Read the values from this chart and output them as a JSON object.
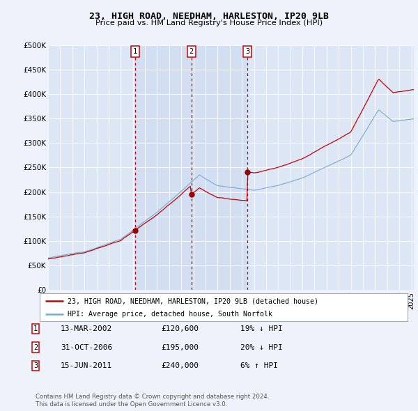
{
  "title": "23, HIGH ROAD, NEEDHAM, HARLESTON, IP20 9LB",
  "subtitle": "Price paid vs. HM Land Registry's House Price Index (HPI)",
  "background_color": "#eef2fa",
  "plot_bg_color": "#dde6f5",
  "ylim": [
    0,
    500000
  ],
  "yticks": [
    0,
    50000,
    100000,
    150000,
    200000,
    250000,
    300000,
    350000,
    400000,
    450000,
    500000
  ],
  "ytick_labels": [
    "£0",
    "£50K",
    "£100K",
    "£150K",
    "£200K",
    "£250K",
    "£300K",
    "£350K",
    "£400K",
    "£450K",
    "£500K"
  ],
  "xlim_start": 1995.0,
  "xlim_end": 2025.2,
  "sale_dates": [
    2002.19,
    2006.83,
    2011.46
  ],
  "sale_prices": [
    120600,
    195000,
    240000
  ],
  "sale_labels": [
    "1",
    "2",
    "3"
  ],
  "vline_color": "#cc0000",
  "sale_line_color": "#cc0000",
  "hpi_line_color": "#7aaad0",
  "dot_color": "#990000",
  "shade_color": "#ccd9f0",
  "legend_entries": [
    "23, HIGH ROAD, NEEDHAM, HARLESTON, IP20 9LB (detached house)",
    "HPI: Average price, detached house, South Norfolk"
  ],
  "table_rows": [
    {
      "num": "1",
      "date": "13-MAR-2002",
      "price": "£120,600",
      "hpi": "19% ↓ HPI"
    },
    {
      "num": "2",
      "date": "31-OCT-2006",
      "price": "£195,000",
      "hpi": "20% ↓ HPI"
    },
    {
      "num": "3",
      "date": "15-JUN-2011",
      "price": "£240,000",
      "hpi": "6% ↑ HPI"
    }
  ],
  "footnote1": "Contains HM Land Registry data © Crown copyright and database right 2024.",
  "footnote2": "This data is licensed under the Open Government Licence v3.0."
}
